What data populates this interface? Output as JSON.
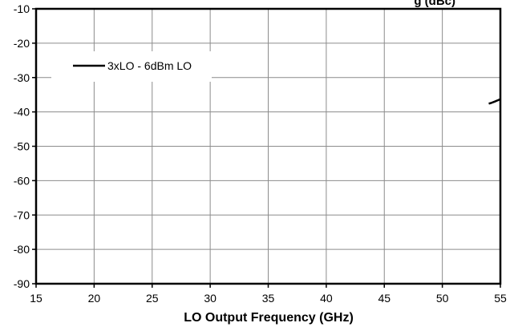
{
  "chart_data": {
    "type": "line",
    "title": "g (dBc)",
    "xlabel": "LO Output Frequency (GHz)",
    "ylabel": "",
    "xlim": [
      15,
      55
    ],
    "ylim": [
      -90,
      -10
    ],
    "x_ticks": [
      15,
      20,
      25,
      30,
      35,
      40,
      45,
      50,
      55
    ],
    "y_ticks": [
      -10,
      -20,
      -30,
      -40,
      -50,
      -60,
      -70,
      -80,
      -90
    ],
    "grid": true,
    "legend_position": "top-left",
    "series": [
      {
        "name": "3xLO - 6dBm LO",
        "color": "#000000",
        "x": [
          54.0,
          54.2,
          54.5,
          54.8,
          55.0
        ],
        "y": [
          -37.6,
          -37.4,
          -37.0,
          -36.6,
          -36.3
        ]
      }
    ]
  }
}
